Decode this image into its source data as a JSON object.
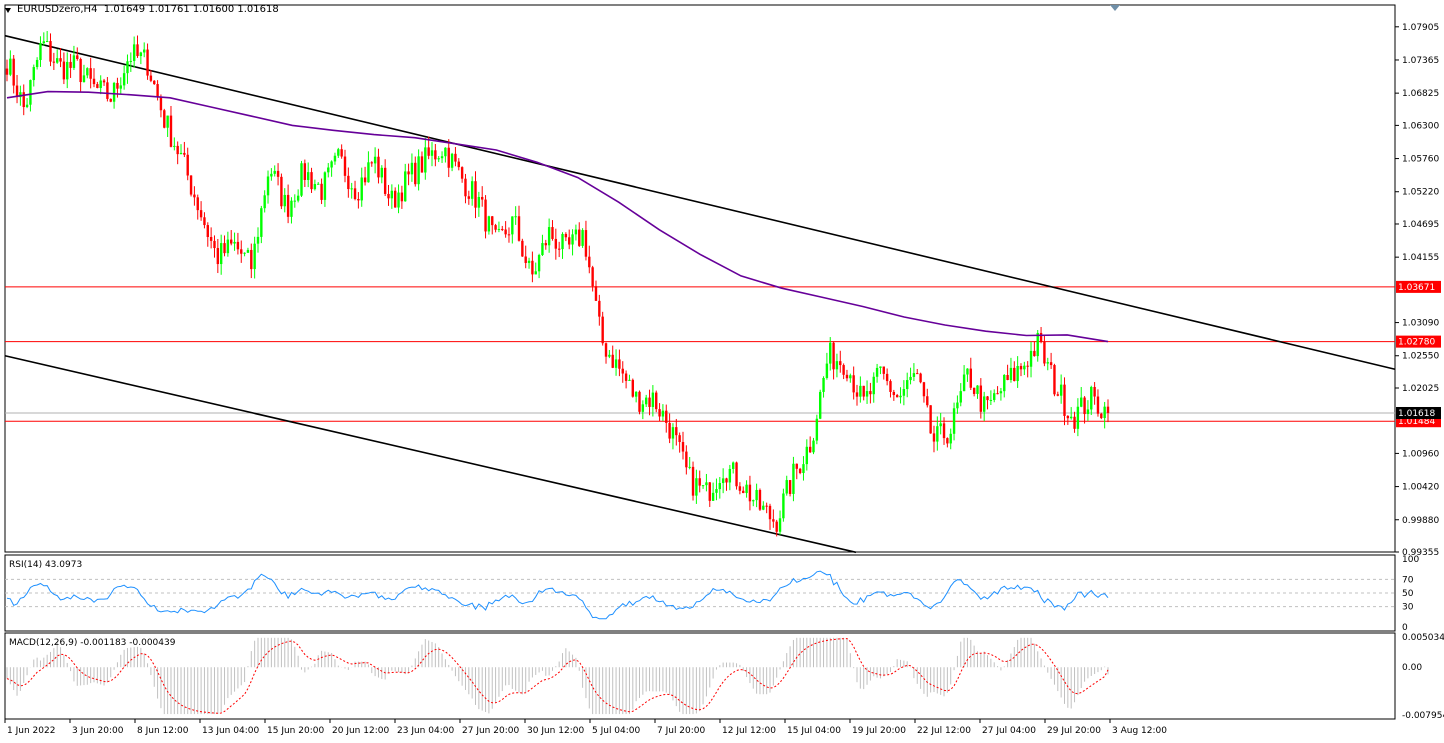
{
  "header": {
    "symbol_timeframe": "EURUSDzero,H4",
    "ohlc": "1.01649 1.01761 1.01600 1.01618"
  },
  "colors": {
    "bull": "#00ff00",
    "bear": "#ff0000",
    "ma": "#660099",
    "trendline": "#000000",
    "hline": "#ff0000",
    "rsi": "#1e90ff",
    "macd_hist": "#c0c0c0",
    "macd_signal": "#ff0000",
    "grid": "#c0c0c0"
  },
  "chart_data": {
    "type": "candlestick",
    "symbol": "EURUSDzero",
    "timeframe": "H4",
    "price_range": [
      0.99355,
      1.0826
    ],
    "price_ticks": [
      "1.07905",
      "1.07365",
      "1.06825",
      "1.06300",
      "1.05760",
      "1.05220",
      "1.04695",
      "1.04155",
      "1.03090",
      "1.02550",
      "1.02025",
      "1.00960",
      "1.00420",
      "0.99880",
      "0.99355"
    ],
    "date_labels": [
      "1 Jun 2022",
      "3 Jun 20:00",
      "8 Jun 12:00",
      "13 Jun 04:00",
      "15 Jun 20:00",
      "20 Jun 12:00",
      "23 Jun 04:00",
      "27 Jun 20:00",
      "30 Jun 12:00",
      "5 Jul 04:00",
      "7 Jul 20:00",
      "12 Jul 12:00",
      "15 Jul 04:00",
      "19 Jul 20:00",
      "22 Jul 12:00",
      "27 Jul 04:00",
      "29 Jul 20:00",
      "3 Aug 12:00"
    ],
    "current_price": "1.01618",
    "horizontal_levels": [
      {
        "value": 1.03671,
        "label": "1.03671"
      },
      {
        "value": 1.0278,
        "label": "1.02780"
      },
      {
        "value": 1.01484,
        "label": "1.01484"
      }
    ],
    "price_path": [
      1.0735,
      1.0655,
      1.0765,
      1.0725,
      1.0725,
      1.069,
      1.0675,
      1.0745,
      1.0735,
      1.064,
      1.0575,
      1.0495,
      1.0415,
      1.0435,
      1.04,
      1.0565,
      1.0495,
      1.0555,
      1.0525,
      1.0575,
      1.0525,
      1.0575,
      1.0505,
      1.0545,
      1.0575,
      1.0595,
      1.0545,
      1.0505,
      1.0435,
      1.0475,
      1.038,
      1.0455,
      1.0425,
      1.0455,
      1.028,
      1.0235,
      1.0185,
      1.0185,
      1.0135,
      1.0055,
      1.003,
      1.0075,
      1.005,
      1.001,
      0.9985,
      1.006,
      1.0115,
      1.0255,
      1.0245,
      1.0175,
      1.0225,
      1.0185,
      1.0225,
      1.0115,
      1.0135,
      1.0225,
      1.0165,
      1.0205,
      1.0235,
      1.0275,
      1.0205,
      1.0155,
      1.0185,
      1.0162
    ],
    "series": [
      {
        "name": "MA",
        "type": "line",
        "values": [
          1.0675,
          1.0685,
          1.0684,
          1.068,
          1.0675,
          1.066,
          1.0645,
          1.063,
          1.0622,
          1.0615,
          1.061,
          1.06,
          1.059,
          1.057,
          1.0545,
          1.0505,
          1.046,
          1.042,
          1.0385,
          1.0365,
          1.035,
          1.0335,
          1.0318,
          1.0305,
          1.0295,
          1.0288,
          1.0289,
          1.0278
        ]
      },
      {
        "name": "RSI(14)",
        "pane": "rsi",
        "range": [
          0,
          100
        ],
        "levels": [
          70,
          50,
          30
        ],
        "ticks": [
          "100",
          "70",
          "50",
          "30",
          "0"
        ],
        "current": "43.0973"
      },
      {
        "name": "MACD(12,26,9)",
        "pane": "macd",
        "range": [
          -0.007954,
          0.005034
        ],
        "ticks": [
          "0.005034",
          "0.00",
          "-0.007954"
        ],
        "main": "-0.001183",
        "signal": "-0.000439"
      }
    ],
    "trendlines": [
      {
        "from": [
          "1 Jun 2022",
          1.0776
        ],
        "to": [
          "4 Aug",
          1.0233
        ]
      },
      {
        "from": [
          "1 Jun 2022",
          1.0255
        ],
        "to": [
          "15 Jul",
          0.9935
        ]
      }
    ]
  },
  "rsi_label": "RSI(14) 43.0973",
  "macd_label": "MACD(12,26,9) -0.001183 -0.000439"
}
